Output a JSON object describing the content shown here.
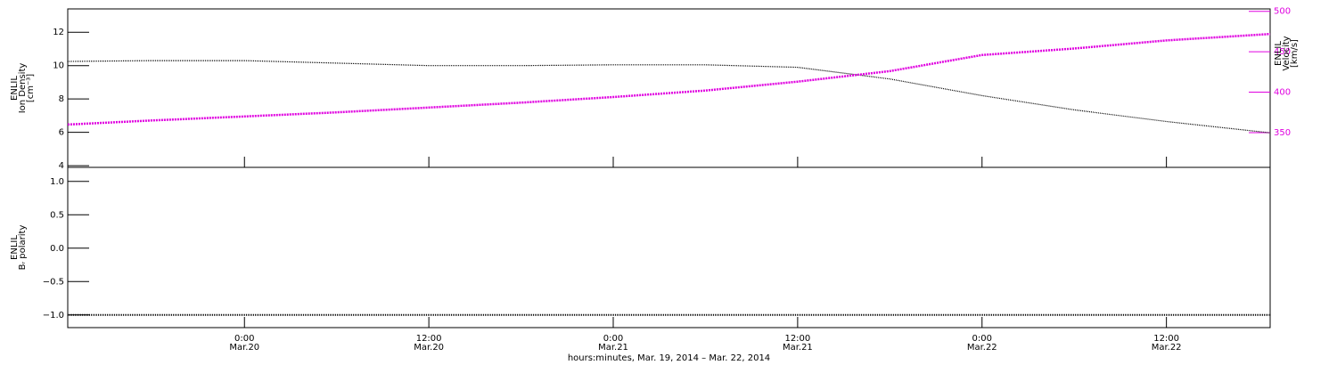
{
  "chart_data": [
    {
      "type": "line",
      "ylabel": [
        "ENLIL",
        "Ion Density",
        "[cm⁻³]"
      ],
      "y2label": [
        "ENLIL",
        "Velocity",
        "[km/s]"
      ],
      "x": [
        "2014-03-19T12:30",
        "2014-03-19T18:00",
        "2014-03-20T00:00",
        "2014-03-20T06:00",
        "2014-03-20T12:00",
        "2014-03-20T18:00",
        "2014-03-21T00:00",
        "2014-03-21T06:00",
        "2014-03-21T12:00",
        "2014-03-21T18:00",
        "2014-03-22T00:00",
        "2014-03-22T06:00",
        "2014-03-22T12:00",
        "2014-03-22T18:45"
      ],
      "xlim": [
        "2014-03-19T12:30",
        "2014-03-22T18:45"
      ],
      "ylim": [
        3.9,
        13.4
      ],
      "yticks": [
        4,
        6,
        8,
        10,
        12
      ],
      "y2lim": [
        307,
        503
      ],
      "y2ticks": [
        350,
        400,
        450,
        500
      ],
      "y2color": "#e000e0",
      "series": [
        {
          "color": "#000000",
          "values": [
            10.25,
            10.3,
            10.3,
            10.15,
            10.0,
            10.0,
            10.05,
            10.05,
            9.9,
            9.2,
            8.2,
            7.35,
            6.65,
            5.97
          ]
        },
        {
          "color": "#e000e0",
          "axis": "y2",
          "values": [
            360,
            365,
            370,
            375,
            381,
            387,
            394,
            402,
            413,
            426,
            446,
            454,
            464,
            472
          ]
        }
      ]
    },
    {
      "type": "line",
      "ylabel": [
        "ENLIL",
        "Bᵣ polarity"
      ],
      "xlabel": "hours:minutes, Mar. 19, 2014 – Mar. 22, 2014",
      "x": [
        "2014-03-19T12:30",
        "2014-03-19T18:00",
        "2014-03-20T00:00",
        "2014-03-20T06:00",
        "2014-03-20T12:00",
        "2014-03-20T18:00",
        "2014-03-21T00:00",
        "2014-03-21T06:00",
        "2014-03-21T12:00",
        "2014-03-21T18:00",
        "2014-03-22T00:00",
        "2014-03-22T06:00",
        "2014-03-22T12:00",
        "2014-03-22T18:45"
      ],
      "xlim": [
        "2014-03-19T12:30",
        "2014-03-22T18:45"
      ],
      "xticks": [
        {
          "value": "2014-03-20T00:00",
          "label": "0:00",
          "date": "Mar.20"
        },
        {
          "value": "2014-03-20T12:00",
          "label": "12:00",
          "date": "Mar.20"
        },
        {
          "value": "2014-03-21T00:00",
          "label": "0:00",
          "date": "Mar.21"
        },
        {
          "value": "2014-03-21T12:00",
          "label": "12:00",
          "date": "Mar.21"
        },
        {
          "value": "2014-03-22T00:00",
          "label": "0:00",
          "date": "Mar.22"
        },
        {
          "value": "2014-03-22T12:00",
          "label": "12:00",
          "date": "Mar.22"
        }
      ],
      "ylim": [
        -1.19,
        1.21
      ],
      "yticks": [
        {
          "value": -1,
          "label": "−1.0"
        },
        {
          "value": -0.5,
          "label": "−0.5"
        },
        {
          "value": 0,
          "label": "0.0"
        },
        {
          "value": 0.5,
          "label": "0.5"
        },
        {
          "value": 1,
          "label": "1.0"
        }
      ],
      "series": [
        {
          "color": "#000000",
          "values": [
            -1,
            -1,
            -1,
            -1,
            -1,
            -1,
            -1,
            -1,
            -1,
            -1,
            -1,
            -1,
            -1,
            -1
          ]
        }
      ]
    }
  ]
}
